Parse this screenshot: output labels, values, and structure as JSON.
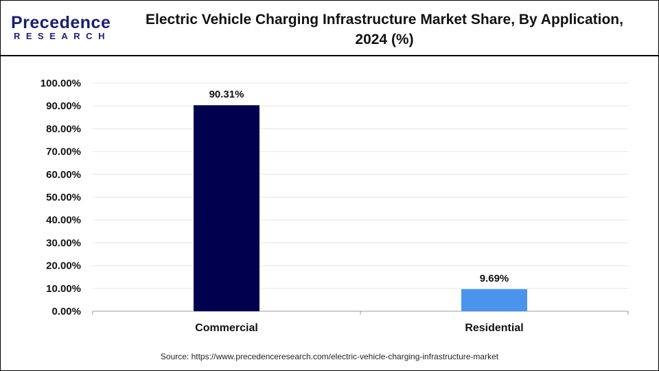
{
  "logo": {
    "text": "Precedence",
    "subtext": "RESEARCH"
  },
  "chart_data": {
    "type": "bar",
    "title": "Electric Vehicle Charging Infrastructure Market Share, By Application, 2024 (%)",
    "categories": [
      "Commercial",
      "Residential"
    ],
    "values": [
      90.31,
      9.69
    ],
    "data_labels": [
      "90.31%",
      "9.69%"
    ],
    "bar_colors": [
      "#00004f",
      "#4a94ec"
    ],
    "ylim": [
      0,
      100
    ],
    "yticks": [
      "0.00%",
      "10.00%",
      "20.00%",
      "30.00%",
      "40.00%",
      "50.00%",
      "60.00%",
      "70.00%",
      "80.00%",
      "90.00%",
      "100.00%"
    ],
    "grid": true,
    "xlabel": "",
    "ylabel": ""
  },
  "source": "Source: https://www.precedenceresearch.com/electric-vehicle-charging-infrastructure-market"
}
